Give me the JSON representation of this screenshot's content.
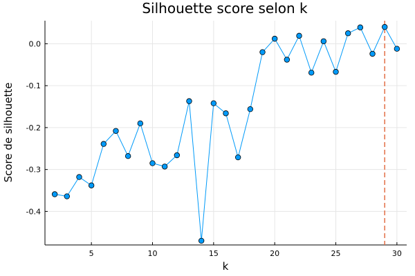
{
  "chart_data": {
    "type": "line",
    "title": "Silhouette score selon k",
    "xlabel": "k",
    "ylabel": "Score de silhouette",
    "xlim": [
      1.2,
      30.8
    ],
    "ylim": [
      -0.48,
      0.055
    ],
    "xticks": [
      5,
      10,
      15,
      20,
      25,
      30
    ],
    "yticks": [
      -0.4,
      -0.3,
      -0.2,
      -0.1,
      0.0
    ],
    "ytick_labels": [
      "-0.4",
      "-0.3",
      "-0.2",
      "-0.1",
      "0.0"
    ],
    "grid": true,
    "series": [
      {
        "color": "#009af9",
        "marker": "circle",
        "x": [
          2,
          3,
          4,
          5,
          6,
          7,
          8,
          9,
          10,
          11,
          12,
          13,
          14,
          15,
          16,
          17,
          18,
          19,
          20,
          21,
          22,
          23,
          24,
          25,
          26,
          27,
          28,
          29,
          30
        ],
        "y": [
          -0.359,
          -0.364,
          -0.318,
          -0.338,
          -0.239,
          -0.208,
          -0.268,
          -0.19,
          -0.285,
          -0.293,
          -0.266,
          -0.137,
          -0.47,
          -0.142,
          -0.166,
          -0.271,
          -0.156,
          -0.02,
          0.012,
          -0.038,
          0.019,
          -0.069,
          0.006,
          -0.067,
          0.025,
          0.039,
          -0.024,
          0.04,
          -0.012
        ]
      }
    ],
    "vline": {
      "x": 29,
      "color": "#e26f46",
      "style": "dashed"
    }
  }
}
